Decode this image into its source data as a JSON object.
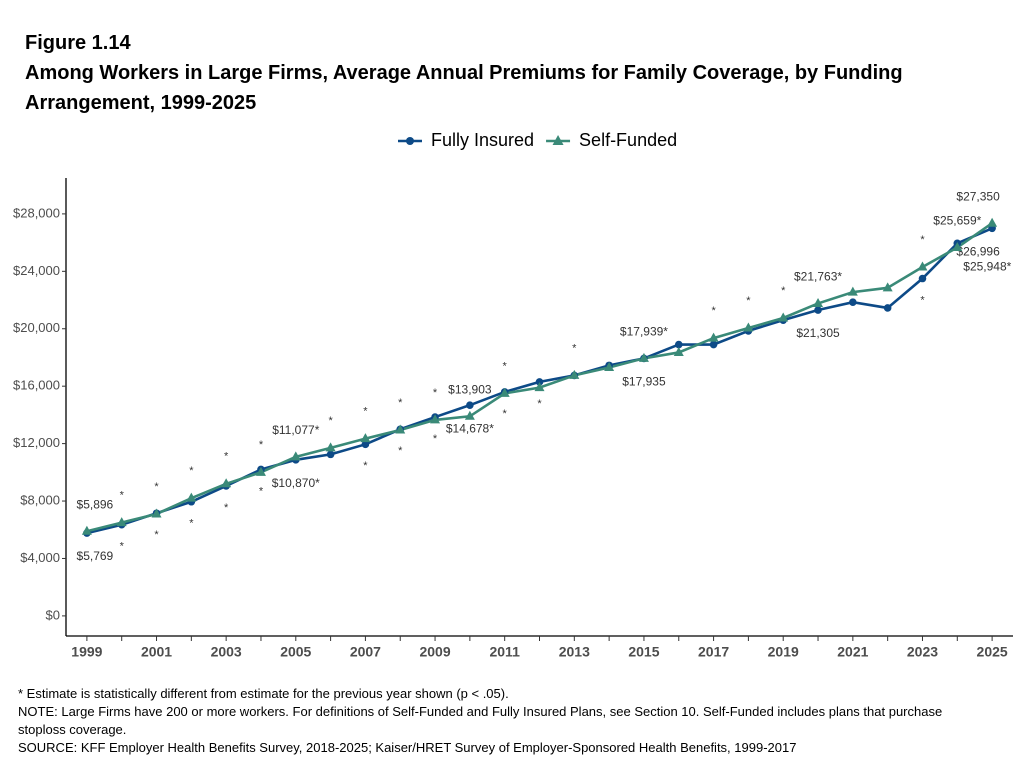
{
  "chart_data": {
    "type": "line",
    "figure_label": "Figure 1.14",
    "title": "Among Workers in Large Firms, Average Annual Premiums for Family Coverage, by Funding Arrangement, 1999-2025",
    "x": [
      1999,
      2000,
      2001,
      2002,
      2003,
      2004,
      2005,
      2006,
      2007,
      2008,
      2009,
      2010,
      2011,
      2012,
      2013,
      2014,
      2015,
      2016,
      2017,
      2018,
      2019,
      2020,
      2021,
      2022,
      2023,
      2024,
      2025
    ],
    "series": [
      {
        "name": "Fully Insured",
        "color": "#0d4a87",
        "marker": "circle",
        "values": [
          5769,
          6350,
          7150,
          7950,
          9050,
          10200,
          10870,
          11250,
          11950,
          13000,
          13850,
          14678,
          15600,
          16300,
          16750,
          17450,
          17935,
          18900,
          18900,
          19850,
          20600,
          21305,
          21850,
          21450,
          23500,
          25948,
          26996
        ],
        "value_labels": [
          "$5,769",
          "*",
          "*",
          "*",
          "*",
          "*",
          "$10,870*",
          null,
          "*",
          "*",
          "*",
          "$14,678*",
          "*",
          "*",
          null,
          null,
          "$17,935",
          null,
          null,
          null,
          null,
          "$21,305",
          null,
          null,
          "*",
          "$25,948*",
          "$26,996"
        ]
      },
      {
        "name": "Self-Funded",
        "color": "#3a8a78",
        "marker": "triangle",
        "values": [
          5896,
          6500,
          7100,
          8200,
          9200,
          10000,
          11077,
          11700,
          12350,
          12950,
          13650,
          13903,
          15500,
          15900,
          16750,
          17300,
          17939,
          18350,
          19350,
          20050,
          20750,
          21763,
          22550,
          22850,
          24300,
          25659,
          27350
        ],
        "value_labels": [
          "$5,896",
          "*",
          "*",
          "*",
          "*",
          "*",
          "$11,077*",
          "*",
          "*",
          "*",
          "*",
          "$13,903",
          "*",
          null,
          "*",
          null,
          "$17,939*",
          null,
          "*",
          "*",
          "*",
          "$21,763*",
          null,
          null,
          "*",
          "$25,659*",
          "$27,350"
        ]
      }
    ],
    "xlim": [
      1998.4,
      2025.6
    ],
    "xticks": [
      1999,
      2001,
      2003,
      2005,
      2007,
      2009,
      2011,
      2013,
      2015,
      2017,
      2019,
      2021,
      2023,
      2025
    ],
    "ylim": [
      -1400,
      30500
    ],
    "yticks": [
      {
        "value": 0,
        "label": "$0"
      },
      {
        "value": 4000,
        "label": "$4,000"
      },
      {
        "value": 8000,
        "label": "$8,000"
      },
      {
        "value": 12000,
        "label": "$12,000"
      },
      {
        "value": 16000,
        "label": "$16,000"
      },
      {
        "value": 20000,
        "label": "$20,000"
      },
      {
        "value": 24000,
        "label": "$24,000"
      },
      {
        "value": 28000,
        "label": "$28,000"
      }
    ],
    "grid": false,
    "legend": "top",
    "notes": [
      "* Estimate is statistically different from estimate for the previous year shown (p < .05).",
      "NOTE: Large Firms have 200 or more workers.  For definitions of Self-Funded and Fully Insured Plans, see Section 10. Self-Funded includes plans that purchase stoploss coverage.",
      "SOURCE: KFF Employer Health Benefits Survey, 2018-2025; Kaiser/HRET Survey of Employer-Sponsored Health Benefits, 1999-2017"
    ]
  }
}
